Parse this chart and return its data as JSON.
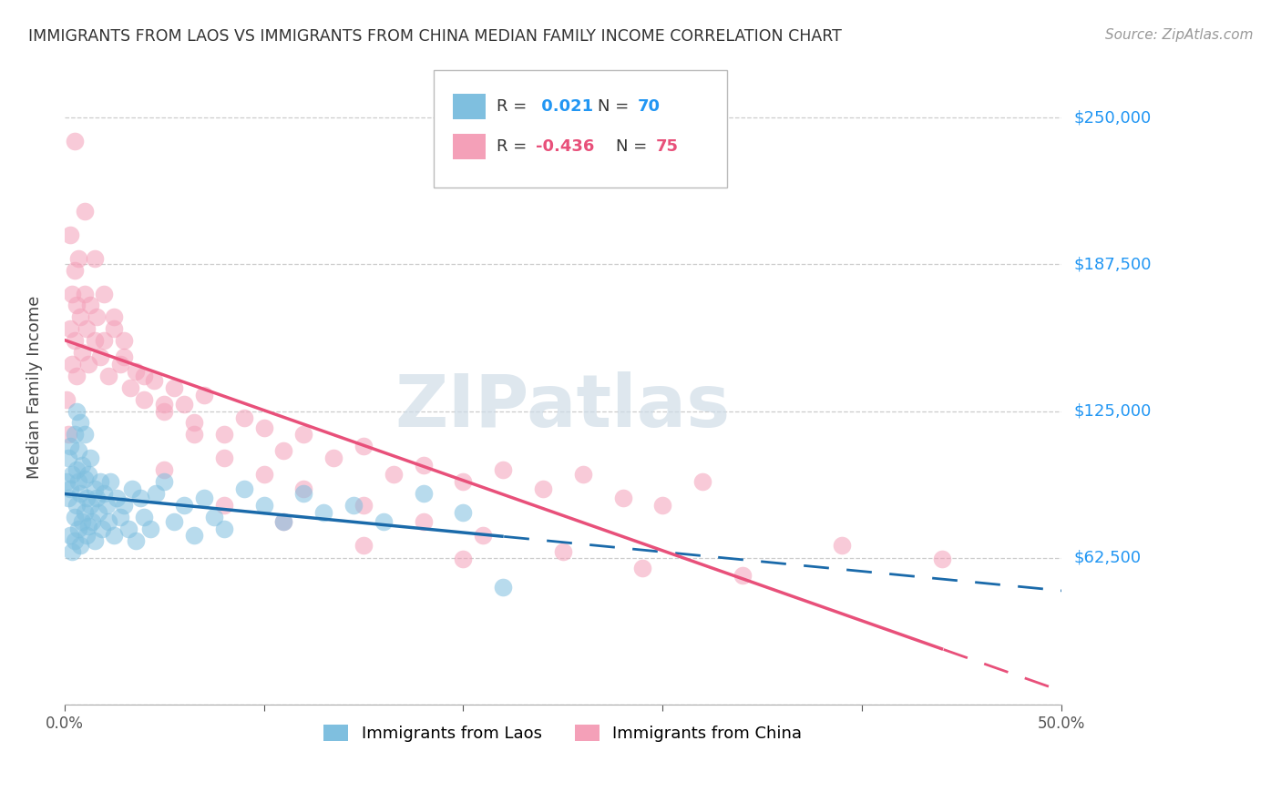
{
  "title": "IMMIGRANTS FROM LAOS VS IMMIGRANTS FROM CHINA MEDIAN FAMILY INCOME CORRELATION CHART",
  "source": "Source: ZipAtlas.com",
  "ylabel": "Median Family Income",
  "xlim": [
    0.0,
    0.5
  ],
  "ylim": [
    0,
    270000
  ],
  "yticks": [
    0,
    62500,
    125000,
    187500,
    250000
  ],
  "ytick_labels": [
    "",
    "$62,500",
    "$125,000",
    "$187,500",
    "$250,000"
  ],
  "xticks": [
    0.0,
    0.1,
    0.2,
    0.3,
    0.4,
    0.5
  ],
  "xtick_labels": [
    "0.0%",
    "",
    "",
    "",
    "",
    "50.0%"
  ],
  "watermark": "ZIPatlas",
  "legend_r_laos": "0.021",
  "legend_n_laos": "70",
  "legend_r_china": "-0.436",
  "legend_n_china": "75",
  "laos_color": "#7fbfdf",
  "china_color": "#f4a0b8",
  "laos_line_color": "#1a6aaa",
  "china_line_color": "#e8507a",
  "background_color": "#ffffff",
  "laos_x": [
    0.001,
    0.002,
    0.002,
    0.003,
    0.003,
    0.003,
    0.004,
    0.004,
    0.005,
    0.005,
    0.005,
    0.006,
    0.006,
    0.006,
    0.007,
    0.007,
    0.007,
    0.008,
    0.008,
    0.008,
    0.009,
    0.009,
    0.01,
    0.01,
    0.01,
    0.011,
    0.011,
    0.012,
    0.012,
    0.013,
    0.013,
    0.014,
    0.015,
    0.015,
    0.016,
    0.017,
    0.018,
    0.019,
    0.02,
    0.021,
    0.022,
    0.023,
    0.025,
    0.026,
    0.028,
    0.03,
    0.032,
    0.034,
    0.036,
    0.038,
    0.04,
    0.043,
    0.046,
    0.05,
    0.055,
    0.06,
    0.065,
    0.07,
    0.075,
    0.08,
    0.09,
    0.1,
    0.11,
    0.12,
    0.13,
    0.145,
    0.16,
    0.18,
    0.2,
    0.22
  ],
  "laos_y": [
    95000,
    88000,
    105000,
    72000,
    92000,
    110000,
    65000,
    98000,
    80000,
    115000,
    70000,
    85000,
    100000,
    125000,
    75000,
    95000,
    108000,
    68000,
    90000,
    120000,
    78000,
    102000,
    82000,
    96000,
    115000,
    72000,
    88000,
    76000,
    98000,
    85000,
    105000,
    78000,
    92000,
    70000,
    88000,
    82000,
    95000,
    75000,
    90000,
    85000,
    78000,
    95000,
    72000,
    88000,
    80000,
    85000,
    75000,
    92000,
    70000,
    88000,
    80000,
    75000,
    90000,
    95000,
    78000,
    85000,
    72000,
    88000,
    80000,
    75000,
    92000,
    85000,
    78000,
    90000,
    82000,
    85000,
    78000,
    90000,
    82000,
    50000
  ],
  "china_x": [
    0.001,
    0.002,
    0.003,
    0.003,
    0.004,
    0.004,
    0.005,
    0.005,
    0.006,
    0.006,
    0.007,
    0.008,
    0.009,
    0.01,
    0.011,
    0.012,
    0.013,
    0.015,
    0.016,
    0.018,
    0.02,
    0.022,
    0.025,
    0.028,
    0.03,
    0.033,
    0.036,
    0.04,
    0.045,
    0.05,
    0.055,
    0.06,
    0.065,
    0.07,
    0.08,
    0.09,
    0.1,
    0.11,
    0.12,
    0.135,
    0.15,
    0.165,
    0.18,
    0.2,
    0.22,
    0.24,
    0.26,
    0.28,
    0.3,
    0.32,
    0.005,
    0.01,
    0.015,
    0.02,
    0.025,
    0.03,
    0.04,
    0.05,
    0.065,
    0.08,
    0.1,
    0.12,
    0.15,
    0.18,
    0.21,
    0.25,
    0.29,
    0.34,
    0.39,
    0.44,
    0.05,
    0.08,
    0.11,
    0.15,
    0.2
  ],
  "china_y": [
    130000,
    115000,
    160000,
    200000,
    145000,
    175000,
    185000,
    155000,
    140000,
    170000,
    190000,
    165000,
    150000,
    175000,
    160000,
    145000,
    170000,
    155000,
    165000,
    148000,
    155000,
    140000,
    160000,
    145000,
    148000,
    135000,
    142000,
    130000,
    138000,
    125000,
    135000,
    128000,
    120000,
    132000,
    115000,
    122000,
    118000,
    108000,
    115000,
    105000,
    110000,
    98000,
    102000,
    95000,
    100000,
    92000,
    98000,
    88000,
    85000,
    95000,
    240000,
    210000,
    190000,
    175000,
    165000,
    155000,
    140000,
    128000,
    115000,
    105000,
    98000,
    92000,
    85000,
    78000,
    72000,
    65000,
    58000,
    55000,
    68000,
    62000,
    100000,
    85000,
    78000,
    68000,
    62000
  ]
}
